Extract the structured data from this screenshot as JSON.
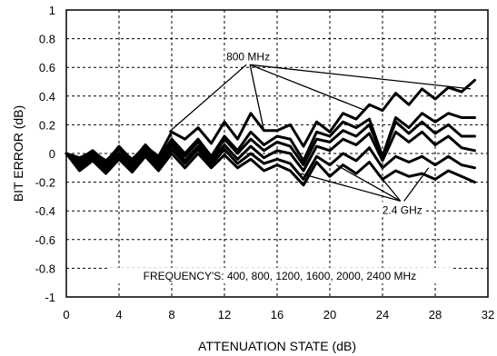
{
  "chart_data": {
    "type": "line",
    "title": "",
    "xlabel": "ATTENUATION STATE (dB)",
    "ylabel": "BIT ERROR (dB)",
    "xlim": [
      0,
      32
    ],
    "ylim": [
      -1,
      1
    ],
    "xticks": [
      0,
      4,
      8,
      12,
      16,
      20,
      24,
      28,
      32
    ],
    "yticks": [
      1,
      0.8,
      0.6,
      0.4,
      0.2,
      0,
      -0.2,
      -0.4,
      -0.6,
      -0.8,
      -1
    ],
    "ytick_labels": [
      "1",
      "0.8",
      "0.6",
      "0.4",
      "0.2",
      "0",
      "-0.2",
      "-0.4",
      "-0.6",
      "-0.8",
      "-1"
    ],
    "grid": true,
    "x": [
      0,
      1,
      2,
      3,
      4,
      5,
      6,
      7,
      8,
      9,
      10,
      11,
      12,
      13,
      14,
      15,
      16,
      17,
      18,
      19,
      20,
      21,
      22,
      23,
      24,
      25,
      26,
      27,
      28,
      29,
      30,
      31
    ],
    "series": [
      {
        "values": [
          0,
          -0.03,
          0.01,
          -0.05,
          0.03,
          -0.04,
          0.05,
          -0.02,
          0.15,
          0.1,
          0.18,
          0.07,
          0.22,
          0.1,
          0.28,
          0.16,
          0.16,
          0.2,
          0.05,
          0.22,
          0.15,
          0.28,
          0.24,
          0.34,
          0.3,
          0.42,
          0.34,
          0.45,
          0.38,
          0.46,
          0.43,
          0.51
        ]
      },
      {
        "values": [
          0,
          -0.04,
          0.02,
          -0.06,
          0.05,
          -0.05,
          0.06,
          -0.04,
          0.1,
          0,
          0.1,
          -0.02,
          0.12,
          0.02,
          0.15,
          0.06,
          0.12,
          0.1,
          -0.05,
          0.15,
          0.12,
          0.22,
          0.18,
          0.24,
          -0.02,
          0.25,
          0.18,
          0.28,
          0.22,
          0.28,
          0.25,
          0.25
        ]
      },
      {
        "values": [
          0,
          -0.06,
          0,
          -0.08,
          0.03,
          -0.07,
          0.04,
          -0.06,
          0.08,
          -0.02,
          0.08,
          -0.04,
          0.1,
          0,
          0.1,
          0.02,
          0.08,
          0.05,
          -0.08,
          0.1,
          0.08,
          0.16,
          0.12,
          0.2,
          -0.02,
          0.22,
          0.14,
          0.22,
          0.14,
          0.2,
          0.12,
          0.12
        ]
      },
      {
        "values": [
          0,
          -0.08,
          -0.02,
          -0.1,
          0,
          -0.09,
          0.02,
          -0.08,
          0.06,
          -0.05,
          0.05,
          -0.06,
          0.06,
          -0.04,
          0.05,
          -0.03,
          0.02,
          0,
          -0.12,
          0.05,
          0.02,
          0.1,
          0.06,
          0.14,
          -0.05,
          0.15,
          0.08,
          0.15,
          0.06,
          0.12,
          0.04,
          0.02
        ]
      },
      {
        "values": [
          0,
          -0.1,
          -0.04,
          -0.12,
          -0.02,
          -0.11,
          0,
          -0.1,
          0.03,
          -0.07,
          0.03,
          -0.08,
          0.03,
          -0.07,
          0,
          -0.07,
          -0.04,
          -0.07,
          -0.18,
          -0.02,
          -0.08,
          0,
          -0.05,
          0.04,
          -0.1,
          -0.02,
          -0.06,
          -0.02,
          -0.08,
          -0.02,
          -0.08,
          -0.1
        ]
      },
      {
        "values": [
          0,
          -0.12,
          -0.05,
          -0.14,
          -0.04,
          -0.13,
          -0.02,
          -0.12,
          0,
          -0.1,
          0,
          -0.1,
          -0.01,
          -0.1,
          -0.04,
          -0.12,
          -0.08,
          -0.12,
          -0.22,
          -0.06,
          -0.16,
          -0.08,
          -0.14,
          -0.06,
          -0.18,
          -0.12,
          -0.16,
          -0.14,
          -0.18,
          -0.12,
          -0.16,
          -0.2
        ]
      }
    ],
    "annotations": [
      {
        "text": "800 MHz",
        "x": 13.8,
        "y": 0.65,
        "targets": [
          [
            7.8,
            0.15
          ],
          [
            15,
            0.16
          ],
          [
            22.7,
            0.3
          ],
          [
            30.7,
            0.45
          ]
        ]
      },
      {
        "text": "2.4 GHz",
        "x": 25.5,
        "y": -0.42,
        "targets": [
          [
            17.8,
            -0.14
          ],
          [
            20.5,
            -0.08
          ],
          [
            23.3,
            -0.1
          ],
          [
            27.5,
            -0.1
          ]
        ]
      },
      {
        "text": "FREQUENCY'S: 400, 800, 1200, 1600, 2000, 2400 MHz",
        "x": 16.2,
        "y": -0.88,
        "targets": []
      }
    ]
  }
}
